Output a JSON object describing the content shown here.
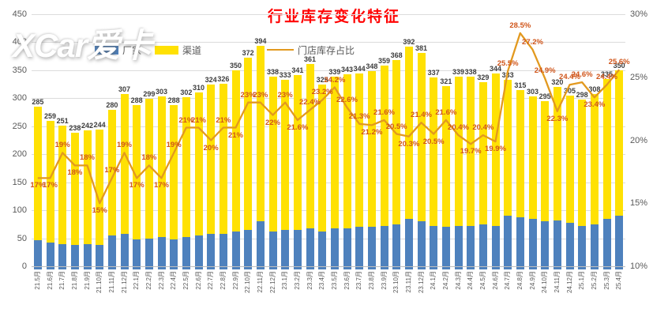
{
  "title": "行业库存变化特征",
  "watermark": "XCar爱卡",
  "legend": {
    "manufacturer": {
      "label": "厂家",
      "color": "#4e81bd"
    },
    "channel": {
      "label": "渠道",
      "color": "#ffe103"
    },
    "line": {
      "label": "门店库存占比",
      "color": "#e2991f"
    }
  },
  "colors": {
    "bar_manufacturer": "#4e81bd",
    "bar_channel": "#ffe103",
    "line": "#e2991f",
    "line_label": "#d0551a",
    "title": "#ff0000",
    "bar_total_label": "#3d3d3d"
  },
  "chart_data": {
    "type": "bar",
    "subtype": "stacked-bars-with-line",
    "title": "行业库存变化特征",
    "xlabel": "",
    "ylabel_left": "",
    "ylabel_right": "",
    "left_axis": {
      "min": 0,
      "max": 450,
      "step": 50,
      "ticks": [
        0,
        50,
        100,
        150,
        200,
        250,
        300,
        350,
        400,
        450
      ]
    },
    "right_axis": {
      "min": 10,
      "max": 30,
      "step": 5,
      "ticks": [
        "10%",
        "15%",
        "20%",
        "25%",
        "30%"
      ]
    },
    "grid": true,
    "legend_position": "top",
    "categories": [
      "21.5月",
      "21.6月",
      "21.7月",
      "21.8月",
      "21.9月",
      "21.10月",
      "21.11月",
      "21.12月",
      "22.1月",
      "22.2月",
      "22.3月",
      "22.4月",
      "22.5月",
      "22.6月",
      "22.7月",
      "22.8月",
      "22.9月",
      "22.10月",
      "22.11月",
      "22.12月",
      "23.1月",
      "23.2月",
      "23.3月",
      "23.4月",
      "23.5月",
      "23.6月",
      "23.7月",
      "23.8月",
      "23.9月",
      "23.10月",
      "23.11月",
      "23.12月",
      "24.1月",
      "24.2月",
      "24.3月",
      "24.4月",
      "24.5月",
      "24.6月",
      "24.7月",
      "24.8月",
      "24.9月",
      "24.10月",
      "24.11月",
      "24.12月",
      "25.1月",
      "25.2月",
      "25.3月",
      "25.4月"
    ],
    "series": [
      {
        "name": "厂家",
        "type": "bar",
        "stack": "inv",
        "values": [
          47,
          42,
          40,
          38,
          40,
          38,
          55,
          58,
          48,
          50,
          52,
          48,
          52,
          55,
          58,
          58,
          62,
          65,
          80,
          62,
          65,
          65,
          68,
          62,
          68,
          68,
          70,
          70,
          72,
          75,
          85,
          80,
          72,
          70,
          72,
          72,
          75,
          72,
          90,
          88,
          85,
          80,
          82,
          78,
          72,
          75,
          85,
          90
        ]
      },
      {
        "name": "渠道",
        "type": "bar",
        "stack": "inv",
        "values": [
          238,
          217,
          211,
          200,
          202,
          206,
          225,
          249,
          240,
          249,
          251,
          240,
          250,
          255,
          266,
          268,
          288,
          307,
          314,
          276,
          268,
          276,
          293,
          263,
          271,
          275,
          274,
          278,
          287,
          293,
          307,
          301,
          265,
          251,
          267,
          266,
          254,
          272,
          243,
          227,
          218,
          215,
          238,
          227,
          226,
          233,
          250,
          260
        ]
      },
      {
        "name": "门店库存占比",
        "type": "line",
        "values": [
          17,
          17,
          19,
          18,
          18,
          15,
          17,
          19,
          17,
          18,
          17,
          19,
          21,
          21,
          20,
          21,
          21,
          23,
          23,
          22,
          23,
          21.6,
          22.4,
          23.2,
          24.2,
          22.6,
          21.3,
          21.2,
          21.6,
          20.5,
          20.3,
          21.4,
          20.5,
          21.6,
          20.4,
          19.7,
          20.4,
          19.9,
          25.5,
          28.5,
          27.2,
          24.9,
          22.3,
          24.4,
          24.6,
          23.4,
          24.4,
          25.6
        ]
      }
    ],
    "bar_total_labels": [
      285,
      259,
      251,
      238,
      242,
      244,
      280,
      307,
      288,
      299,
      303,
      288,
      302,
      310,
      324,
      326,
      350,
      372,
      394,
      338,
      333,
      341,
      361,
      325,
      339,
      343,
      344,
      348,
      359,
      368,
      392,
      381,
      337,
      321,
      339,
      338,
      329,
      344,
      333,
      315,
      303,
      295,
      320,
      305,
      298,
      308,
      335,
      350
    ],
    "line_point_labels": [
      "17%",
      "17%",
      "19%",
      "18%",
      "18%",
      "15%",
      "17%",
      "19%",
      "17%",
      "18%",
      "17%",
      "19%",
      "21%",
      "21%",
      "20%",
      "21%",
      "21%",
      "23%",
      "23%",
      "22%",
      "23%",
      "21.6%",
      "22.4%",
      "23.2%",
      "24.2%",
      "22.6%",
      "21.3%",
      "21.2%",
      "21.6%",
      "20.5%",
      "20.3%",
      "21.4%",
      "20.5%",
      "21.6%",
      "20.4%",
      "19.7%",
      "20.4%",
      "19.9%",
      "25.5%",
      "28.5%",
      "27.2%",
      "24.9%",
      "22.3%",
      "24.4%",
      "24.6%",
      "23.4%",
      "24.4%",
      "25.6%"
    ]
  }
}
